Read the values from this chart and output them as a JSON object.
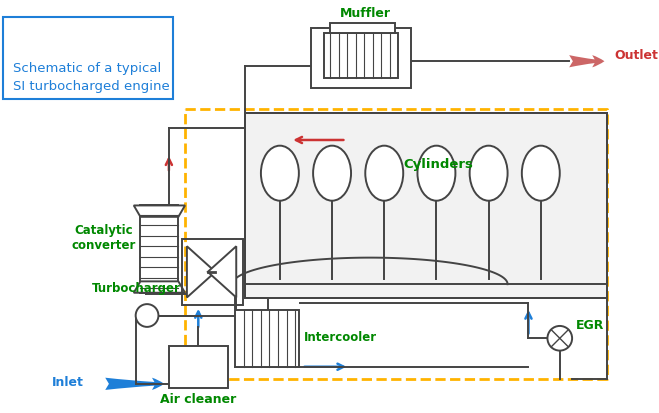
{
  "title": "Schematic of a typical\nSI turbocharged engine",
  "labels": {
    "muffler": "Muffler",
    "outlet": "Outlet",
    "catalytic": "Catalytic\nconverter",
    "turbocharger": "Turbocharger",
    "intercooler": "Intercooler",
    "inlet": "Inlet",
    "air_cleaner": "Air cleaner",
    "cylinders": "Cylinders",
    "egr": "EGR"
  },
  "colors": {
    "green": "#008800",
    "blue": "#1E7FD8",
    "red": "#CC3333",
    "dark_gray": "#444444",
    "orange": "#FFB300",
    "bg": "#FFFFFF",
    "box_border": "#1E7FD8",
    "outlet_arrow": "#CC6666"
  },
  "figsize": [
    6.59,
    4.14
  ],
  "dpi": 100
}
